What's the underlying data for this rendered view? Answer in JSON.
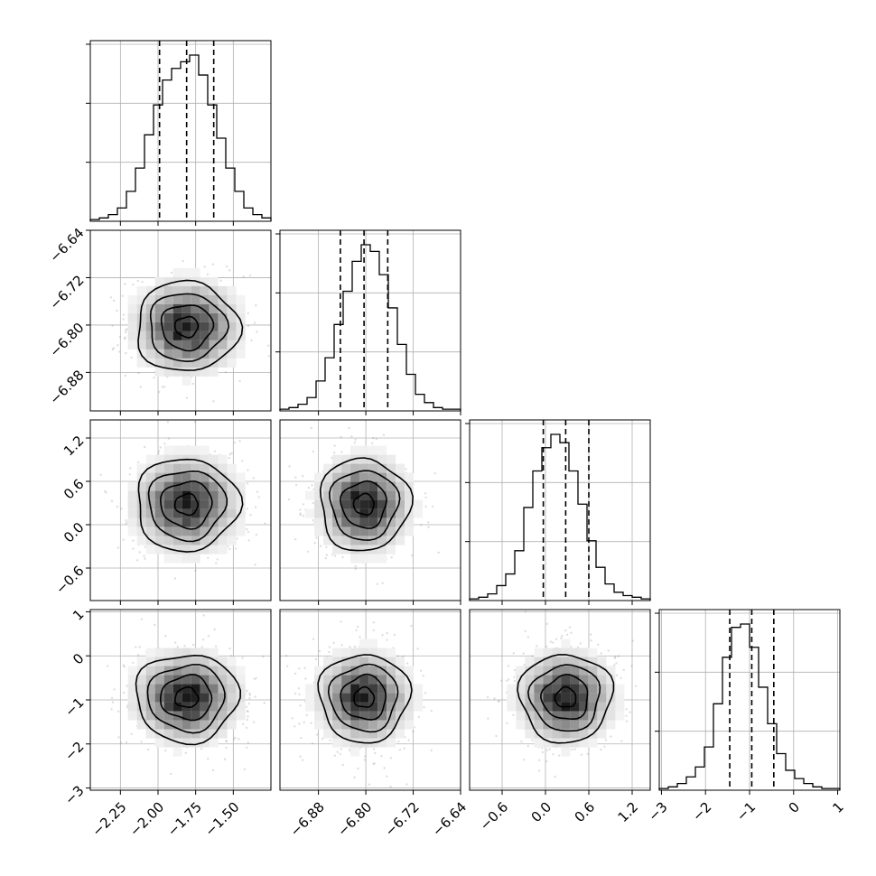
{
  "chart_data": {
    "type": "corner",
    "grid": true,
    "parameters": [
      {
        "mean": -1.81,
        "sigma": 0.17,
        "range": [
          -2.45,
          -1.25
        ],
        "ticks": [
          -2.25,
          -2.0,
          -1.75,
          -1.5
        ],
        "tick_labels": [
          "−2.25",
          "−2.00",
          "−1.75",
          "−1.50"
        ],
        "quantiles": [
          -1.99,
          -1.81,
          -1.63
        ],
        "hist_counts": [
          0.01,
          0.02,
          0.04,
          0.08,
          0.18,
          0.32,
          0.52,
          0.7,
          0.85,
          0.92,
          0.96,
          1.0,
          0.88,
          0.7,
          0.5,
          0.32,
          0.18,
          0.08,
          0.04,
          0.02
        ]
      },
      {
        "mean": -6.803,
        "sigma": 0.038,
        "range": [
          -6.945,
          -6.64
        ],
        "ticks": [
          -6.88,
          -6.8,
          -6.72,
          -6.64
        ],
        "tick_labels": [
          "−6.88",
          "−6.80",
          "−6.72",
          "−6.64"
        ],
        "quantiles": [
          -6.843,
          -6.803,
          -6.763
        ],
        "hist_counts": [
          0.01,
          0.02,
          0.04,
          0.08,
          0.18,
          0.32,
          0.52,
          0.72,
          0.9,
          1.0,
          0.96,
          0.82,
          0.62,
          0.4,
          0.22,
          0.1,
          0.05,
          0.02,
          0.01,
          0.01
        ]
      },
      {
        "mean": 0.28,
        "sigma": 0.32,
        "range": [
          -1.05,
          1.45
        ],
        "ticks": [
          -0.6,
          0.0,
          0.6,
          1.2
        ],
        "tick_labels": [
          "−0.6",
          "0.0",
          "0.6",
          "1.2"
        ],
        "quantiles": [
          -0.03,
          0.28,
          0.6
        ],
        "hist_counts": [
          0.01,
          0.02,
          0.04,
          0.09,
          0.16,
          0.3,
          0.56,
          0.78,
          0.92,
          1.0,
          0.95,
          0.78,
          0.58,
          0.36,
          0.2,
          0.1,
          0.05,
          0.03,
          0.02,
          0.01
        ]
      },
      {
        "mean": -0.95,
        "sigma": 0.5,
        "range": [
          -3.05,
          1.05
        ],
        "ticks": [
          -3,
          -2,
          -1,
          0,
          1
        ],
        "tick_labels": [
          "−3",
          "−2",
          "−1",
          "0",
          "1"
        ],
        "quantiles": [
          -1.45,
          -0.95,
          -0.45
        ],
        "hist_counts": [
          0.01,
          0.02,
          0.04,
          0.08,
          0.14,
          0.26,
          0.52,
          0.8,
          0.98,
          1.0,
          0.86,
          0.62,
          0.4,
          0.22,
          0.12,
          0.07,
          0.04,
          0.02,
          0.01,
          0.01
        ]
      }
    ],
    "colors": {
      "line": "#000000",
      "grid": "#b0b0b0",
      "points": "#888888"
    }
  }
}
